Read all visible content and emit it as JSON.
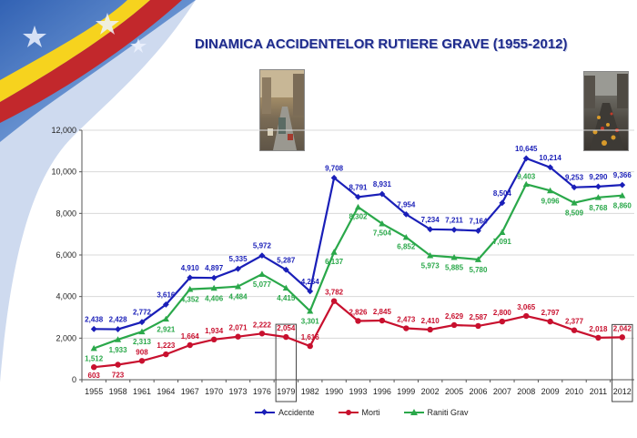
{
  "slide": {
    "title": "DINAMICA ACCIDENTELOR RUTIERE GRAVE  (1955-2012)"
  },
  "colors": {
    "accidente": "#1a1fb8",
    "morti": "#c8102e",
    "raniti": "#2aa84a",
    "axis": "#555555",
    "grid": "#d8d8d8"
  },
  "chart_data": {
    "type": "line",
    "title": "DINAMICA ACCIDENTELOR RUTIERE GRAVE  (1955-2012)",
    "categories": [
      "1955",
      "1958",
      "1961",
      "1964",
      "1967",
      "1970",
      "1973",
      "1976",
      "1979",
      "1982",
      "1990",
      "1993",
      "1996",
      "1999",
      "2002",
      "2005",
      "2006",
      "2007",
      "2008",
      "2009",
      "2010",
      "2011",
      "2012"
    ],
    "ylim": [
      0,
      12000
    ],
    "yticks": [
      "0",
      "2,000",
      "4,000",
      "6,000",
      "8,000",
      "10,000",
      "12,000"
    ],
    "ytick_values": [
      0,
      2000,
      4000,
      6000,
      8000,
      10000,
      12000
    ],
    "grid": "horizontal",
    "legend_position": "bottom",
    "highlighted_categories": [
      "1979",
      "2012"
    ],
    "series": [
      {
        "name": "Accidente",
        "marker": "diamond",
        "values": [
          2438,
          2428,
          2772,
          3616,
          4910,
          4897,
          5335,
          5972,
          5287,
          4254,
          9708,
          8791,
          8931,
          7954,
          7234,
          7211,
          7164,
          8504,
          10645,
          10214,
          9253,
          9290,
          9366
        ],
        "labels": [
          "2,438",
          "2,428",
          "2,772",
          "3,616",
          "4,910",
          "4,897",
          "5,335",
          "5,972",
          "5,287",
          "4,254",
          "9,708",
          "8,791",
          "8,931",
          "7,954",
          "7,234",
          "7,211",
          "7,164",
          "8,504",
          "10,645",
          "10,214",
          "9,253",
          "9,290",
          "9,366"
        ]
      },
      {
        "name": "Morti",
        "marker": "circle",
        "values": [
          603,
          723,
          908,
          1223,
          1664,
          1934,
          2071,
          2222,
          2054,
          1616,
          3782,
          2826,
          2845,
          2473,
          2410,
          2629,
          2587,
          2800,
          3065,
          2797,
          2377,
          2018,
          2042
        ],
        "labels": [
          "603",
          "723",
          "908",
          "1,223",
          "1,664",
          "1,934",
          "2,071",
          "2,222",
          "2,054",
          "1,616",
          "3,782",
          "2,826",
          "2,845",
          "2,473",
          "2,410",
          "2,629",
          "2,587",
          "2,800",
          "3,065",
          "2,797",
          "2,377",
          "2,018",
          "2,042"
        ]
      },
      {
        "name": "Raniti Grav",
        "marker": "triangle",
        "values": [
          1512,
          1933,
          2313,
          2921,
          4352,
          4406,
          4484,
          5077,
          4415,
          3301,
          6137,
          8302,
          7504,
          6852,
          5973,
          5885,
          5780,
          7091,
          9403,
          9096,
          8509,
          8768,
          8860
        ],
        "labels": [
          "1,512",
          "1,933",
          "2,313",
          "2,921",
          "4,352",
          "4,406",
          "4,484",
          "5,077",
          "4,415",
          "3,301",
          "6,137",
          "8,302",
          "7,504",
          "6,852",
          "5,973",
          "5,885",
          "5,780",
          "7,091",
          "9,403",
          "9,096",
          "8,509",
          "8,768",
          "8,860"
        ]
      }
    ]
  }
}
